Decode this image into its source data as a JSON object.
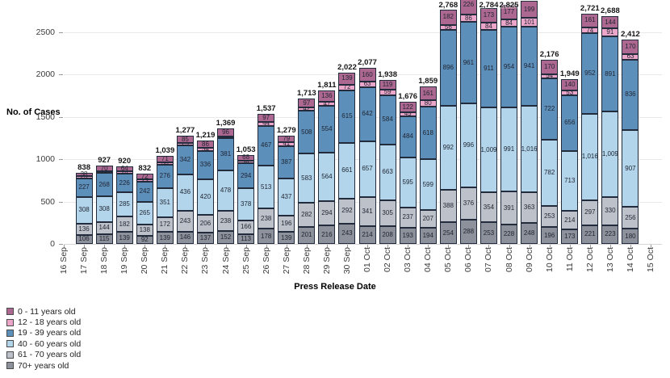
{
  "chart_data": {
    "type": "bar",
    "stacked": true,
    "xlabel": "Press Release Date",
    "ylabel": "No. of Cases",
    "yticks": [
      0,
      500,
      1000,
      1500,
      2000,
      2500
    ],
    "ylim_visible": [
      0,
      2880
    ],
    "grid": "horizontal-faint",
    "legend_position": "bottom-left",
    "categories": [
      "16 Sep",
      "17 Sep",
      "18 Sep",
      "19 Sep",
      "20 Sep",
      "21 Sep",
      "22 Sep",
      "23 Sep",
      "24 Sep",
      "25 Sep",
      "26 Sep",
      "27 Sep",
      "28 Sep",
      "29 Sep",
      "30 Sep",
      "01 Oct",
      "02 Oct",
      "03 Oct",
      "04 Oct",
      "05 Oct",
      "06 Oct",
      "07 Oct",
      "08 Oct",
      "09 Oct",
      "10 Oct",
      "11 Oct",
      "12 Oct",
      "13 Oct",
      "14 Oct",
      "15 Oct"
    ],
    "series": [
      {
        "name": "0 - 11 years old",
        "color": "#ac6890",
        "values": [
          null,
          38,
          70,
          64,
          72,
          71,
          85,
          86,
          96,
          68,
          97,
          79,
          97,
          136,
          139,
          160,
          119,
          122,
          161,
          182,
          226,
          173,
          177,
          199,
          170,
          140,
          161,
          144,
          170,
          null
        ]
      },
      {
        "name": "12 - 18 years old",
        "color": "#eca6ca",
        "values": [
          null,
          23,
          22,
          24,
          23,
          30,
          25,
          34,
          24,
          34,
          44,
          41,
          42,
          47,
          72,
          63,
          59,
          45,
          80,
          56,
          86,
          84,
          84,
          101,
          54,
          53,
          74,
          91,
          63,
          null
        ]
      },
      {
        "name": "19 - 39 years old",
        "color": "#5d8fbb",
        "values": [
          null,
          227,
          268,
          226,
          242,
          276,
          342,
          336,
          381,
          294,
          467,
          387,
          508,
          554,
          615,
          642,
          584,
          484,
          618,
          896,
          961,
          911,
          954,
          941,
          722,
          656,
          952,
          891,
          836,
          null
        ]
      },
      {
        "name": "40 - 60 years old",
        "color": "#b2d5eb",
        "values": [
          null,
          308,
          308,
          285,
          265,
          351,
          436,
          420,
          478,
          378,
          513,
          437,
          583,
          564,
          661,
          657,
          663,
          595,
          599,
          992,
          996,
          1009,
          991,
          1016,
          782,
          713,
          1016,
          1009,
          907,
          null
        ]
      },
      {
        "name": "61 - 70 years old",
        "color": "#bdc2ca",
        "values": [
          null,
          136,
          144,
          182,
          138,
          172,
          243,
          206,
          238,
          166,
          238,
          196,
          282,
          294,
          292,
          341,
          305,
          237,
          207,
          388,
          376,
          354,
          391,
          363,
          253,
          214,
          297,
          330,
          256,
          null
        ]
      },
      {
        "name": "70+ years old",
        "color": "#8c919b",
        "values": [
          null,
          106,
          115,
          139,
          92,
          139,
          146,
          137,
          152,
          113,
          178,
          139,
          201,
          216,
          243,
          214,
          208,
          193,
          194,
          254,
          288,
          253,
          228,
          248,
          196,
          173,
          221,
          223,
          180,
          null
        ]
      }
    ],
    "total_labels": [
      null,
      "838",
      "927",
      "920",
      "832",
      "1,039",
      "1,277",
      "1,219",
      "1,369",
      "1,053",
      "1,537",
      "1,279",
      "1,713",
      "1,811",
      "2,022",
      "2,077",
      "1,938",
      "1,676",
      "1,859",
      "2,768",
      null,
      "2,784",
      "2,825",
      null,
      "2,176",
      "1,949",
      "2,721",
      "2,688",
      "2,412",
      null
    ]
  },
  "axes": {
    "x_title": "Press Release Date",
    "y_title": "No. of Cases"
  }
}
